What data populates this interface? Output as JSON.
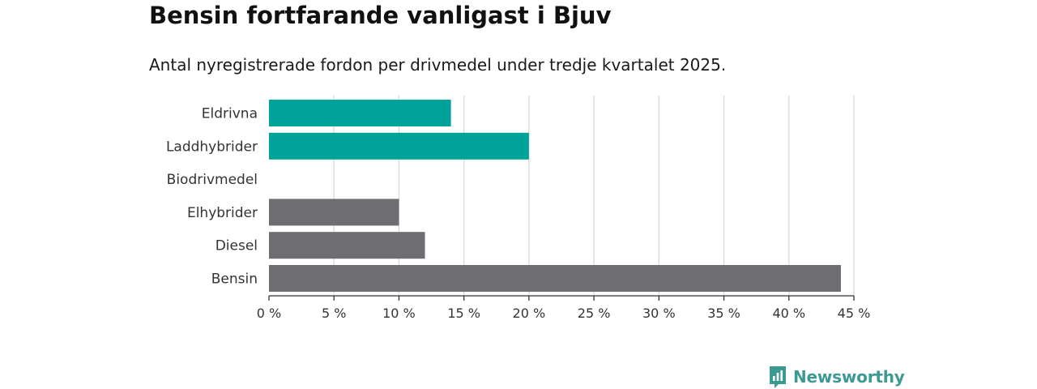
{
  "header": {
    "title": "Bensin fortfarande vanligast i Bjuv",
    "subtitle": "Antal nyregistrerade fordon per drivmedel under tredje kvartalet 2025."
  },
  "colors": {
    "highlight": "#00a39a",
    "neutral": "#6e6d72",
    "grid": "#d9d9d9",
    "axis": "#333333",
    "brand": "#3c9a93"
  },
  "chart_data": {
    "type": "bar",
    "orientation": "horizontal",
    "title": "Bensin fortfarande vanligast i Bjuv",
    "subtitle": "Antal nyregistrerade fordon per drivmedel under tredje kvartalet 2025.",
    "xlabel": "",
    "ylabel": "",
    "xlim": [
      0,
      45
    ],
    "grid": true,
    "categories": [
      "Eldrivna",
      "Laddhybrider",
      "Biodrivmedel",
      "Elhybrider",
      "Diesel",
      "Bensin"
    ],
    "values": [
      14,
      20,
      0,
      10,
      12,
      44
    ],
    "bar_colors": [
      "highlight",
      "highlight",
      "neutral",
      "neutral",
      "neutral",
      "neutral"
    ],
    "ticks": [
      0,
      5,
      10,
      15,
      20,
      25,
      30,
      35,
      40,
      45
    ],
    "tick_labels": [
      "0 %",
      "5 %",
      "10 %",
      "15 %",
      "20 %",
      "25 %",
      "30 %",
      "35 %",
      "40 %",
      "45 %"
    ]
  },
  "footer": {
    "logo_text": "Newsworthy",
    "logo_icon": "newsworthy-logo-icon"
  }
}
